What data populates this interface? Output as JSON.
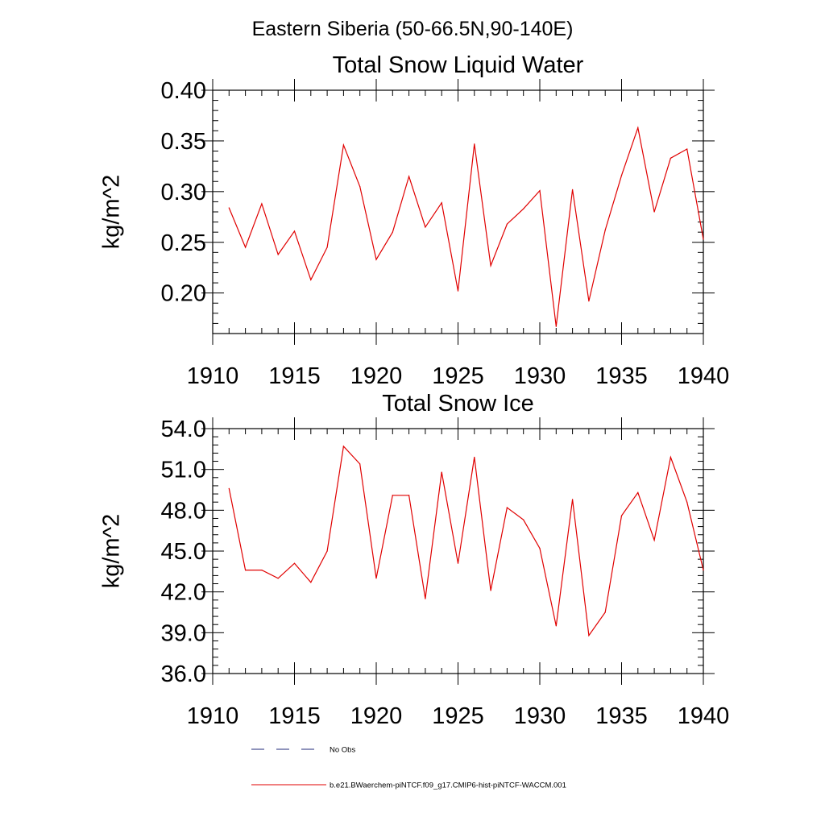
{
  "figure": {
    "title": "Eastern Siberia (50-66.5N,90-140E)",
    "legend": {
      "entries": [
        {
          "label": "No Obs",
          "color": "#1f2a7a",
          "style": "dashed"
        },
        {
          "label": "b.e21.BWaerchem-piNTCF.f09_g17.CMIP6-hist-piNTCF-WACCM.001",
          "color": "#e00000",
          "style": "solid"
        }
      ]
    }
  },
  "chart_data": [
    {
      "type": "line",
      "title": "Total Snow Liquid Water",
      "xlabel": "",
      "ylabel": "kg/m^2",
      "xlim": [
        1910,
        1940
      ],
      "ylim": [
        0.16,
        0.4
      ],
      "xticks": [
        1910,
        1915,
        1920,
        1925,
        1930,
        1935,
        1940
      ],
      "yticks": [
        0.2,
        0.25,
        0.3,
        0.35,
        0.4
      ],
      "ytick_labels": [
        "0.20",
        "0.25",
        "0.30",
        "0.35",
        "0.40"
      ],
      "grid": false,
      "series": [
        {
          "name": "b.e21.BWaerchem-piNTCF.f09_g17.CMIP6-hist-piNTCF-WACCM.001",
          "color": "#e00000",
          "x": [
            1911,
            1912,
            1913,
            1914,
            1915,
            1916,
            1917,
            1918,
            1919,
            1920,
            1921,
            1922,
            1923,
            1924,
            1925,
            1926,
            1927,
            1928,
            1929,
            1930,
            1931,
            1932,
            1933,
            1934,
            1935,
            1936,
            1937,
            1938,
            1939,
            1940
          ],
          "values": [
            0.284,
            0.245,
            0.288,
            0.238,
            0.261,
            0.213,
            0.245,
            0.346,
            0.305,
            0.233,
            0.26,
            0.315,
            0.265,
            0.289,
            0.202,
            0.347,
            0.227,
            0.268,
            0.283,
            0.301,
            0.167,
            0.302,
            0.192,
            0.262,
            0.316,
            0.363,
            0.28,
            0.333,
            0.342,
            0.253
          ]
        }
      ]
    },
    {
      "type": "line",
      "title": "Total Snow Ice",
      "xlabel": "",
      "ylabel": "kg/m^2",
      "xlim": [
        1910,
        1940
      ],
      "ylim": [
        36.0,
        54.0
      ],
      "xticks": [
        1910,
        1915,
        1920,
        1925,
        1930,
        1935,
        1940
      ],
      "yticks": [
        36.0,
        39.0,
        42.0,
        45.0,
        48.0,
        51.0,
        54.0
      ],
      "ytick_labels": [
        "36.0",
        "39.0",
        "42.0",
        "45.0",
        "48.0",
        "51.0",
        "54.0"
      ],
      "grid": false,
      "series": [
        {
          "name": "b.e21.BWaerchem-piNTCF.f09_g17.CMIP6-hist-piNTCF-WACCM.001",
          "color": "#e00000",
          "x": [
            1911,
            1912,
            1913,
            1914,
            1915,
            1916,
            1917,
            1918,
            1919,
            1920,
            1921,
            1922,
            1923,
            1924,
            1925,
            1926,
            1927,
            1928,
            1929,
            1930,
            1931,
            1932,
            1933,
            1934,
            1935,
            1936,
            1937,
            1938,
            1939,
            1940
          ],
          "values": [
            49.6,
            43.6,
            43.6,
            43.0,
            44.1,
            42.7,
            45.0,
            52.7,
            51.4,
            43.0,
            49.1,
            49.1,
            41.5,
            50.8,
            44.1,
            51.9,
            42.1,
            48.2,
            47.3,
            45.2,
            39.5,
            48.8,
            38.8,
            40.5,
            47.6,
            49.3,
            45.8,
            51.9,
            48.6,
            43.6
          ]
        }
      ]
    }
  ]
}
